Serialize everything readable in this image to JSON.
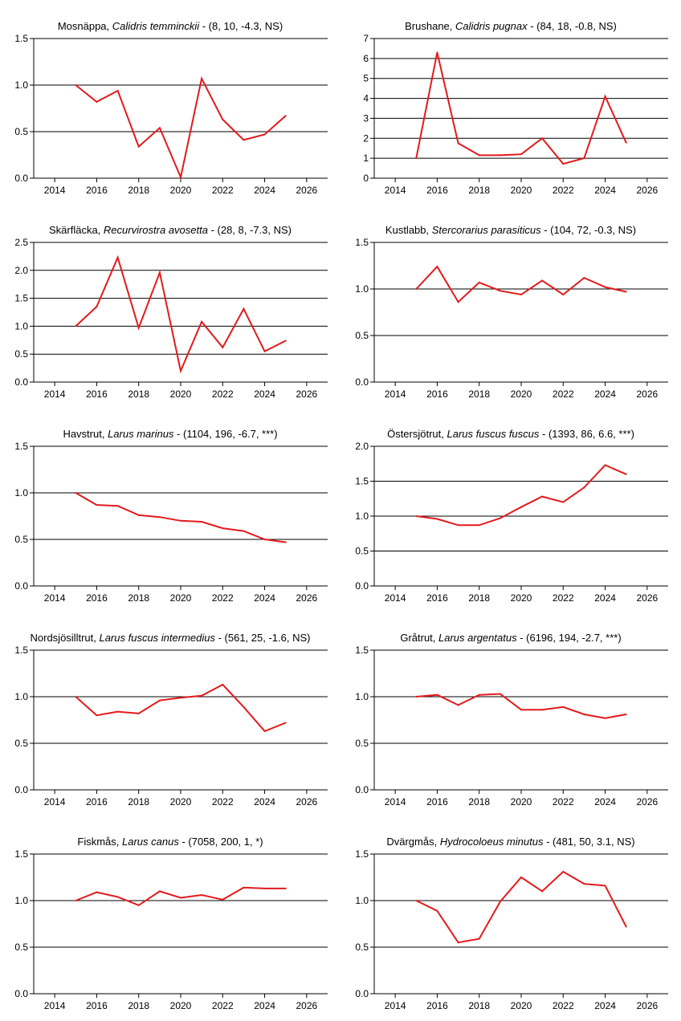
{
  "line_color": "#e31a1c",
  "grid_color": "#000000",
  "chart_data": [
    {
      "type": "line",
      "title": {
        "common": "Mosnäppa, ",
        "scientific": "Calidris temminckii",
        "stats": " - (8, 10, -4.3, NS)"
      },
      "xlim": [
        2013,
        2027
      ],
      "xticks": [
        2014,
        2016,
        2018,
        2020,
        2022,
        2024,
        2026
      ],
      "ylim": [
        0,
        1.5
      ],
      "yticks": [
        "0.0",
        "0.5",
        "1.0",
        "1.5"
      ],
      "x": [
        2015,
        2016,
        2017,
        2018,
        2019,
        2020,
        2021,
        2022,
        2023,
        2024,
        2025
      ],
      "values": [
        1.0,
        0.82,
        0.94,
        0.34,
        0.54,
        0.01,
        1.07,
        0.63,
        0.41,
        0.47,
        0.67
      ]
    },
    {
      "type": "line",
      "title": {
        "common": "Brushane, ",
        "scientific": "Calidris pugnax",
        "stats": " - (84, 18, -0.8, NS)"
      },
      "xlim": [
        2013,
        2027
      ],
      "xticks": [
        2014,
        2016,
        2018,
        2020,
        2022,
        2024,
        2026
      ],
      "ylim": [
        0,
        7
      ],
      "yticks": [
        "0",
        "1",
        "2",
        "3",
        "4",
        "5",
        "6",
        "7"
      ],
      "x": [
        2015,
        2016,
        2017,
        2018,
        2019,
        2020,
        2021,
        2022,
        2023,
        2024,
        2025
      ],
      "values": [
        1.0,
        6.3,
        1.75,
        1.15,
        1.15,
        1.2,
        2.0,
        0.72,
        1.0,
        4.1,
        1.78
      ]
    },
    {
      "type": "line",
      "title": {
        "common": "Skärfläcka, ",
        "scientific": "Recurvirostra avosetta",
        "stats": " - (28, 8, -7.3, NS)"
      },
      "xlim": [
        2013,
        2027
      ],
      "xticks": [
        2014,
        2016,
        2018,
        2020,
        2022,
        2024,
        2026
      ],
      "ylim": [
        0,
        2.5
      ],
      "yticks": [
        "0.0",
        "0.5",
        "1.0",
        "1.5",
        "2.0",
        "2.5"
      ],
      "x": [
        2015,
        2016,
        2017,
        2018,
        2019,
        2020,
        2021,
        2022,
        2023,
        2024,
        2025
      ],
      "values": [
        1.0,
        1.35,
        2.23,
        0.97,
        1.96,
        0.2,
        1.08,
        0.62,
        1.31,
        0.55,
        0.74
      ]
    },
    {
      "type": "line",
      "title": {
        "common": "Kustlabb, ",
        "scientific": "Stercorarius parasiticus",
        "stats": " - (104, 72, -0.3, NS)"
      },
      "xlim": [
        2013,
        2027
      ],
      "xticks": [
        2014,
        2016,
        2018,
        2020,
        2022,
        2024,
        2026
      ],
      "ylim": [
        0,
        1.5
      ],
      "yticks": [
        "0.0",
        "0.5",
        "1.0",
        "1.5"
      ],
      "x": [
        2015,
        2016,
        2017,
        2018,
        2019,
        2020,
        2021,
        2022,
        2023,
        2024,
        2025
      ],
      "values": [
        1.0,
        1.24,
        0.86,
        1.07,
        0.98,
        0.94,
        1.09,
        0.94,
        1.12,
        1.02,
        0.97
      ]
    },
    {
      "type": "line",
      "title": {
        "common": "Havstrut, ",
        "scientific": "Larus marinus",
        "stats": " - (1104, 196, -6.7, ***)"
      },
      "xlim": [
        2013,
        2027
      ],
      "xticks": [
        2014,
        2016,
        2018,
        2020,
        2022,
        2024,
        2026
      ],
      "ylim": [
        0,
        1.5
      ],
      "yticks": [
        "0.0",
        "0.5",
        "1.0",
        "1.5"
      ],
      "x": [
        2015,
        2016,
        2017,
        2018,
        2019,
        2020,
        2021,
        2022,
        2023,
        2024,
        2025
      ],
      "values": [
        1.0,
        0.87,
        0.86,
        0.76,
        0.74,
        0.7,
        0.69,
        0.62,
        0.59,
        0.5,
        0.47
      ]
    },
    {
      "type": "line",
      "title": {
        "common": "Östersjötrut, ",
        "scientific": "Larus fuscus fuscus",
        "stats": " - (1393, 86, 6.6, ***)"
      },
      "xlim": [
        2013,
        2027
      ],
      "xticks": [
        2014,
        2016,
        2018,
        2020,
        2022,
        2024,
        2026
      ],
      "ylim": [
        0,
        2.0
      ],
      "yticks": [
        "0.0",
        "0.5",
        "1.0",
        "1.5",
        "2.0"
      ],
      "x": [
        2015,
        2016,
        2017,
        2018,
        2019,
        2020,
        2021,
        2022,
        2023,
        2024,
        2025
      ],
      "values": [
        1.0,
        0.96,
        0.87,
        0.87,
        0.97,
        1.13,
        1.28,
        1.2,
        1.41,
        1.73,
        1.6
      ]
    },
    {
      "type": "line",
      "title": {
        "common": "Nordsjösilltrut, ",
        "scientific": "Larus fuscus intermedius",
        "stats": " - (561, 25, -1.6, NS)"
      },
      "xlim": [
        2013,
        2027
      ],
      "xticks": [
        2014,
        2016,
        2018,
        2020,
        2022,
        2024,
        2026
      ],
      "ylim": [
        0,
        1.5
      ],
      "yticks": [
        "0.0",
        "0.5",
        "1.0",
        "1.5"
      ],
      "x": [
        2015,
        2016,
        2017,
        2018,
        2019,
        2020,
        2021,
        2022,
        2023,
        2024,
        2025
      ],
      "values": [
        1.0,
        0.8,
        0.84,
        0.82,
        0.96,
        0.99,
        1.01,
        1.13,
        0.89,
        0.63,
        0.72
      ]
    },
    {
      "type": "line",
      "title": {
        "common": "Gråtrut, ",
        "scientific": "Larus argentatus",
        "stats": " - (6196, 194, -2.7, ***)"
      },
      "xlim": [
        2013,
        2027
      ],
      "xticks": [
        2014,
        2016,
        2018,
        2020,
        2022,
        2024,
        2026
      ],
      "ylim": [
        0,
        1.5
      ],
      "yticks": [
        "0.0",
        "0.5",
        "1.0",
        "1.5"
      ],
      "x": [
        2015,
        2016,
        2017,
        2018,
        2019,
        2020,
        2021,
        2022,
        2023,
        2024,
        2025
      ],
      "values": [
        1.0,
        1.02,
        0.91,
        1.02,
        1.03,
        0.86,
        0.86,
        0.89,
        0.81,
        0.77,
        0.81
      ]
    },
    {
      "type": "line",
      "title": {
        "common": "Fiskmås, ",
        "scientific": "Larus canus",
        "stats": " - (7058, 200, 1, *)"
      },
      "xlim": [
        2013,
        2027
      ],
      "xticks": [
        2014,
        2016,
        2018,
        2020,
        2022,
        2024,
        2026
      ],
      "ylim": [
        0,
        1.5
      ],
      "yticks": [
        "0.0",
        "0.5",
        "1.0",
        "1.5"
      ],
      "x": [
        2015,
        2016,
        2017,
        2018,
        2019,
        2020,
        2021,
        2022,
        2023,
        2024,
        2025
      ],
      "values": [
        1.0,
        1.09,
        1.04,
        0.95,
        1.1,
        1.03,
        1.06,
        1.01,
        1.14,
        1.13,
        1.13
      ]
    },
    {
      "type": "line",
      "title": {
        "common": "Dvärgmås, ",
        "scientific": "Hydrocoloeus minutus",
        "stats": " - (481, 50, 3.1, NS)"
      },
      "xlim": [
        2013,
        2027
      ],
      "xticks": [
        2014,
        2016,
        2018,
        2020,
        2022,
        2024,
        2026
      ],
      "ylim": [
        0,
        1.5
      ],
      "yticks": [
        "0.0",
        "0.5",
        "1.0",
        "1.5"
      ],
      "x": [
        2015,
        2016,
        2017,
        2018,
        2019,
        2020,
        2021,
        2022,
        2023,
        2024,
        2025
      ],
      "values": [
        1.0,
        0.89,
        0.55,
        0.59,
        0.99,
        1.25,
        1.1,
        1.31,
        1.18,
        1.16,
        0.72
      ]
    }
  ]
}
